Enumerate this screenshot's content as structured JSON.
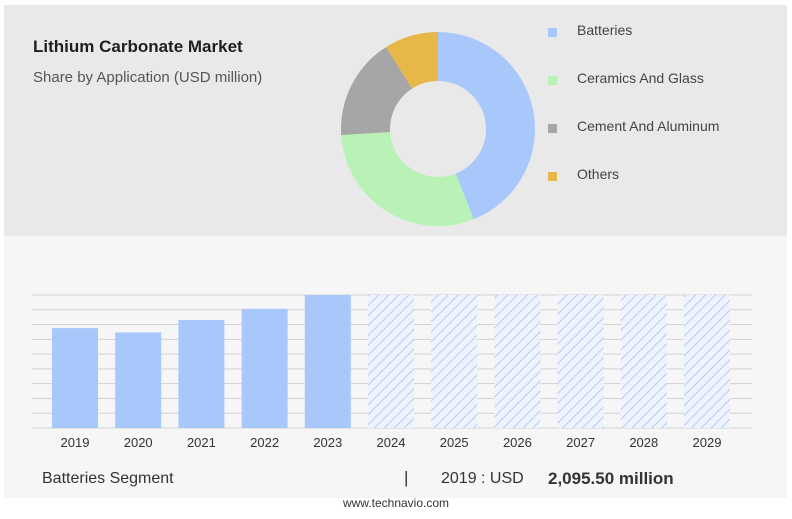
{
  "chart_data": [
    {
      "type": "pie",
      "title": "Lithium Carbonate Market",
      "subtitle": "Share by Application (USD million)",
      "legend_position": "right",
      "slices": [
        {
          "label": "Batteries",
          "value": 44,
          "color": "#a8c8fc"
        },
        {
          "label": "Ceramics And Glass",
          "value": 30,
          "color": "#b8f2b6"
        },
        {
          "label": "Cement And Aluminum",
          "value": 17,
          "color": "#a6a6a6"
        },
        {
          "label": "Others",
          "value": 9,
          "color": "#e5b847"
        }
      ]
    },
    {
      "type": "bar",
      "categories": [
        "2019",
        "2020",
        "2021",
        "2022",
        "2023",
        "2024",
        "2025",
        "2026",
        "2027",
        "2028",
        "2029"
      ],
      "values": [
        2095.5,
        2005,
        2265,
        2500,
        2790,
        2790,
        2790,
        2790,
        2790,
        2790,
        2790
      ],
      "forecast": [
        false,
        false,
        false,
        false,
        false,
        true,
        true,
        true,
        true,
        true,
        true
      ],
      "ylim": [
        0,
        2790
      ],
      "grid": true,
      "bar_color": "#a8c8fc"
    }
  ],
  "footer": {
    "segment": "Batteries Segment",
    "separator": "|",
    "year_text": "2019 : USD",
    "value_text": "2,095.50 million"
  },
  "source": "www.technavio.com"
}
